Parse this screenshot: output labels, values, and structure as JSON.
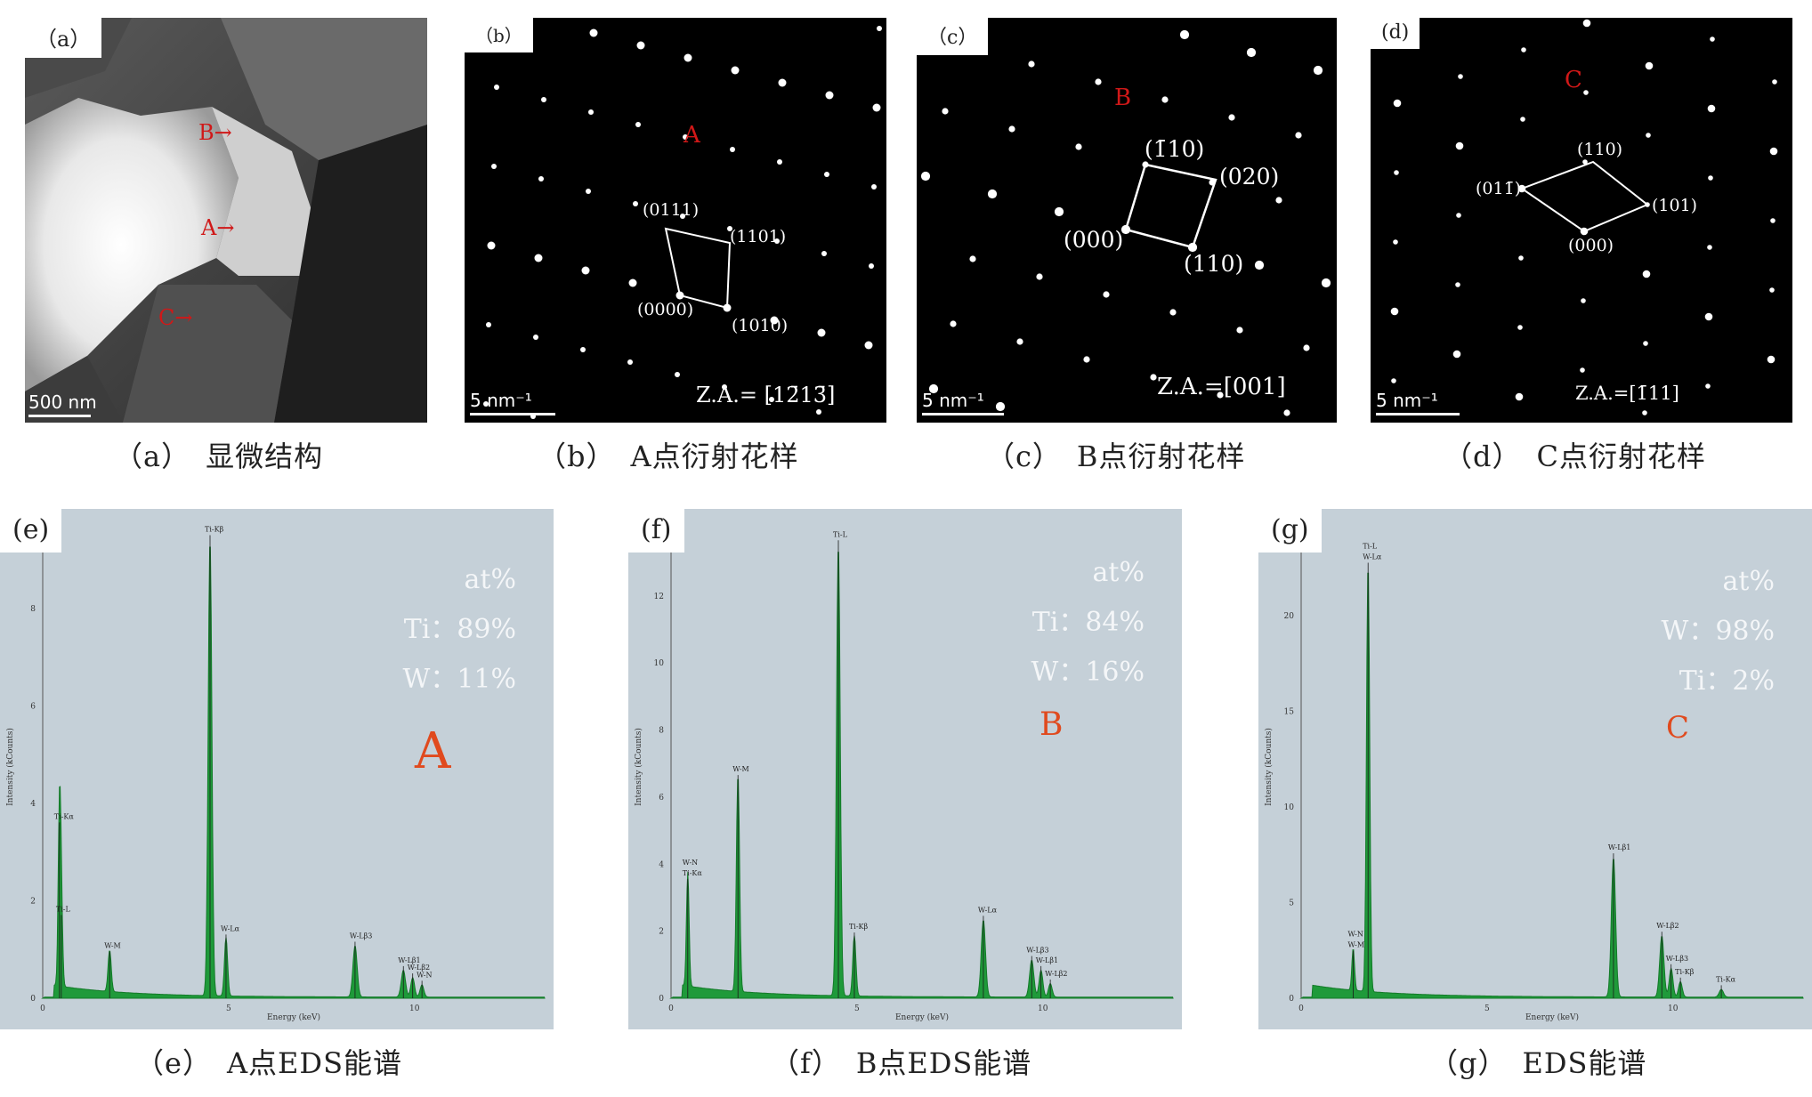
{
  "panels": {
    "a": {
      "tag": "（a）",
      "caption": "（a）　显微结构",
      "scale": "500 nm",
      "markers": [
        "B→",
        "A→",
        "C→"
      ]
    },
    "b": {
      "tag": "（b）",
      "caption": "（b）　A点衍射花样",
      "scale": "5 nm⁻¹",
      "point": "A",
      "za": "Z.A.= [12̄13̄]",
      "labels": [
        "(0111)",
        "(1101)",
        "(0000)",
        "(1010)"
      ]
    },
    "c": {
      "tag": "（c）",
      "caption": "（c）　B点衍射花样",
      "scale": "5 nm⁻¹",
      "point": "B",
      "za": "Z.A.=[001]",
      "labels": [
        "(1̄10)",
        "(020)",
        "(000)",
        "(110)"
      ]
    },
    "d": {
      "tag": "(d)",
      "caption": "（d）　C点衍射花样",
      "scale": "5 nm⁻¹",
      "point": "C",
      "za": "Z.A.=[1̄11]",
      "labels": [
        "(110)",
        "(011̄)",
        "(101)",
        "(000)"
      ]
    },
    "e": {
      "tag": "(e)",
      "caption": "（e）　A点EDS能谱",
      "point": "A",
      "stats": [
        "at%",
        "Ti：89%",
        "W：11%"
      ],
      "ylabel": "Intensity (kCounts)",
      "xlabel": "Energy (keV)",
      "peak_labels": [
        "Ti-Kα",
        "Ti-L",
        "W-M",
        "Ti-Kβ",
        "W-Lα",
        "W-Lβ3",
        "W-Lβ1",
        "W-Lβ2",
        "W-N"
      ]
    },
    "f": {
      "tag": "(f)",
      "caption": "（f）　B点EDS能谱",
      "point": "B",
      "stats": [
        "at%",
        "Ti：84%",
        "W：16%"
      ],
      "ylabel": "Intensity (kCounts)",
      "xlabel": "Energy (keV)",
      "peak_labels": [
        "Ti-Kα",
        "W-M",
        "Ti-L",
        "Ti-Kβ",
        "W-Lα",
        "W-Lβ3",
        "W-Lβ1",
        "W-Lβ2",
        "W-N"
      ]
    },
    "g": {
      "tag": "(g)",
      "caption": "（g）　EDS能谱",
      "point": "C",
      "stats": [
        "at%",
        "W：98%",
        "Ti：2%"
      ],
      "ylabel": "Intensity (kCounts)",
      "xlabel": "Energy (keV)",
      "peak_labels": [
        "W-M",
        "W-Lα",
        "W-Lβ1",
        "W-Lβ2",
        "W-Lβ3",
        "Ti-Kβ",
        "Ti-Kα",
        "W-N",
        "Ti-L"
      ]
    }
  },
  "chart_data": [
    {
      "type": "line",
      "panel": "e",
      "x_ticks": [
        0,
        5,
        10
      ],
      "y_ticks": [
        0,
        2,
        4,
        6,
        8
      ],
      "xlim": [
        0,
        13.5
      ],
      "ylim": [
        0,
        9.5
      ],
      "peaks": [
        {
          "x": 0.45,
          "y": 3.5,
          "w": 0.05
        },
        {
          "x": 0.5,
          "y": 1.6,
          "w": 0.05
        },
        {
          "x": 1.8,
          "y": 0.85,
          "w": 0.06
        },
        {
          "x": 4.5,
          "y": 9.4,
          "w": 0.07
        },
        {
          "x": 4.93,
          "y": 1.2,
          "w": 0.06
        },
        {
          "x": 8.4,
          "y": 1.05,
          "w": 0.08
        },
        {
          "x": 9.7,
          "y": 0.55,
          "w": 0.08
        },
        {
          "x": 9.95,
          "y": 0.4,
          "w": 0.07
        },
        {
          "x": 10.2,
          "y": 0.25,
          "w": 0.07
        }
      ]
    },
    {
      "type": "line",
      "panel": "f",
      "x_ticks": [
        0,
        5,
        10
      ],
      "y_ticks": [
        0,
        2,
        4,
        6,
        8,
        10,
        12
      ],
      "xlim": [
        0,
        13.5
      ],
      "ylim": [
        0,
        13.8
      ],
      "peaks": [
        {
          "x": 0.45,
          "y": 3.4,
          "w": 0.05
        },
        {
          "x": 1.8,
          "y": 6.5,
          "w": 0.06
        },
        {
          "x": 4.5,
          "y": 13.5,
          "w": 0.07
        },
        {
          "x": 4.93,
          "y": 1.8,
          "w": 0.06
        },
        {
          "x": 8.4,
          "y": 2.3,
          "w": 0.08
        },
        {
          "x": 9.7,
          "y": 1.1,
          "w": 0.08
        },
        {
          "x": 9.95,
          "y": 0.8,
          "w": 0.07
        },
        {
          "x": 10.2,
          "y": 0.4,
          "w": 0.07
        }
      ]
    },
    {
      "type": "line",
      "panel": "g",
      "x_ticks": [
        0,
        5,
        10
      ],
      "y_ticks": [
        0,
        5,
        10,
        15,
        20
      ],
      "xlim": [
        0,
        13.5
      ],
      "ylim": [
        0,
        24.2
      ],
      "peaks": [
        {
          "x": 1.4,
          "y": 2.2,
          "w": 0.05
        },
        {
          "x": 1.8,
          "y": 22.5,
          "w": 0.06
        },
        {
          "x": 8.4,
          "y": 7.3,
          "w": 0.08
        },
        {
          "x": 9.7,
          "y": 3.2,
          "w": 0.08
        },
        {
          "x": 9.95,
          "y": 1.5,
          "w": 0.07
        },
        {
          "x": 10.2,
          "y": 0.8,
          "w": 0.07
        },
        {
          "x": 11.3,
          "y": 0.4,
          "w": 0.08
        }
      ]
    }
  ]
}
